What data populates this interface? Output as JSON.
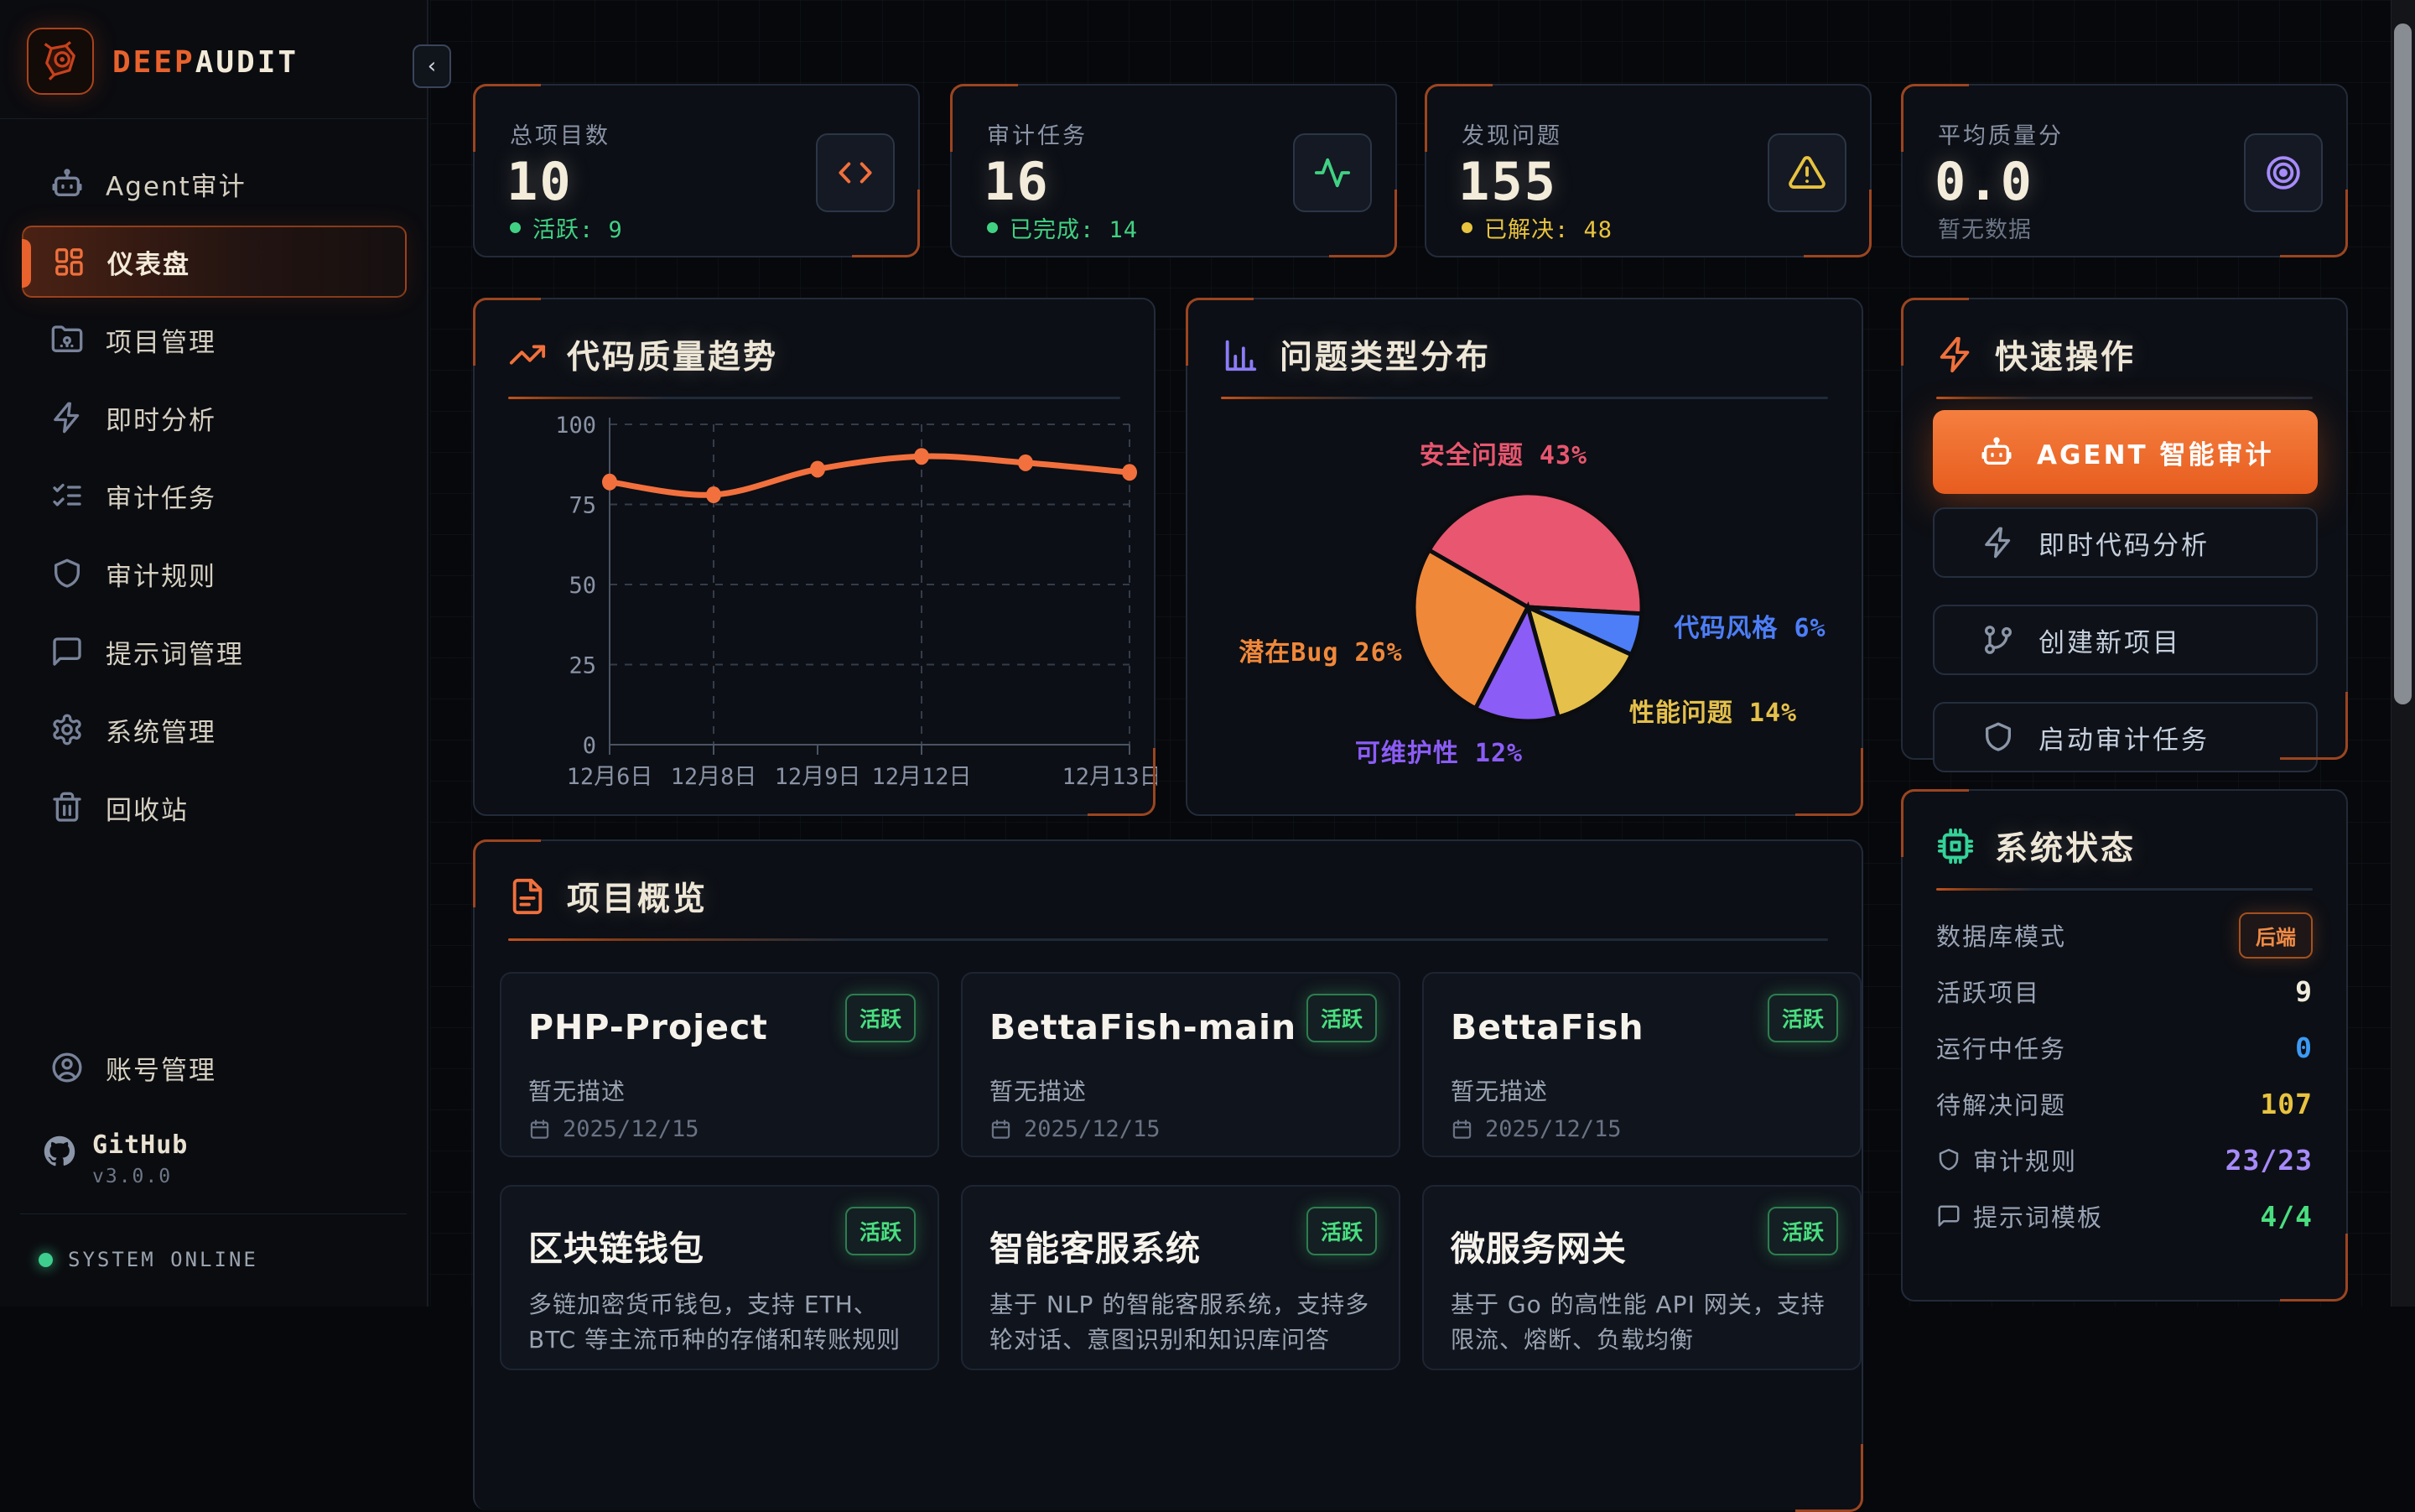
{
  "app": {
    "brand_deep": "DEEP",
    "brand_audit": "AUDIT",
    "version": "v3.0.0",
    "system_status_label": "SYSTEM ONLINE",
    "accent_color": "#e8622d"
  },
  "sidebar": {
    "items": [
      {
        "key": "agent-audit",
        "label": "Agent审计",
        "icon": "robot-icon",
        "active": false
      },
      {
        "key": "dashboard",
        "label": "仪表盘",
        "icon": "dashboard-grid-icon",
        "active": true
      },
      {
        "key": "project-management",
        "label": "项目管理",
        "icon": "folder-git-icon",
        "active": false
      },
      {
        "key": "instant-analysis",
        "label": "即时分析",
        "icon": "zap-icon",
        "active": false
      },
      {
        "key": "audit-tasks",
        "label": "审计任务",
        "icon": "checklist-icon",
        "active": false
      },
      {
        "key": "audit-rules",
        "label": "审计规则",
        "icon": "shield-icon",
        "active": false
      },
      {
        "key": "prompt-management",
        "label": "提示词管理",
        "icon": "chat-bubble-icon",
        "active": false
      },
      {
        "key": "system-management",
        "label": "系统管理",
        "icon": "gear-icon",
        "active": false
      },
      {
        "key": "recycle-bin",
        "label": "回收站",
        "icon": "trash-icon",
        "active": false
      }
    ],
    "account": {
      "key": "account-management",
      "label": "账号管理",
      "icon": "user-circle-icon"
    },
    "github": {
      "label": "GitHub",
      "version": "v3.0.0",
      "icon": "github-icon"
    }
  },
  "stats": [
    {
      "key": "total-projects",
      "label": "总项目数",
      "value": "10",
      "sub": "活跃: 9",
      "sub_color": "#41d183",
      "dot": true,
      "icon": "code-brackets-icon",
      "icon_color": "#f0703c"
    },
    {
      "key": "audit-tasks",
      "label": "审计任务",
      "value": "16",
      "sub": "已完成: 14",
      "sub_color": "#41d183",
      "dot": true,
      "icon": "activity-icon",
      "icon_color": "#41d183"
    },
    {
      "key": "issues-found",
      "label": "发现问题",
      "value": "155",
      "sub": "已解决: 48",
      "sub_color": "#e8c33f",
      "dot": true,
      "icon": "warning-triangle-icon",
      "icon_color": "#e8c33f"
    },
    {
      "key": "avg-quality",
      "label": "平均质量分",
      "value": "0.0",
      "sub": "暂无数据",
      "sub_color": "#6b7585",
      "dot": false,
      "icon": "target-icon",
      "icon_color": "#a78bfa"
    }
  ],
  "chart_data": [
    {
      "type": "line",
      "title": "代码质量趋势",
      "title_icon": "trending-up-icon",
      "title_icon_color": "#f0703c",
      "x": [
        "12月6日",
        "12月8日",
        "12月9日",
        "12月12日",
        "",
        "12月13日"
      ],
      "values": [
        82,
        78,
        86,
        90,
        88,
        85
      ],
      "ylim": [
        0,
        100
      ],
      "yticks": [
        0,
        25,
        50,
        75,
        100
      ],
      "line_color": "#f2703d",
      "grid": "dashed"
    },
    {
      "type": "pie",
      "title": "问题类型分布",
      "title_icon": "bar-chart-icon",
      "title_icon_color": "#8b7cf6",
      "start_angle": 150,
      "series": [
        {
          "name": "安全问题",
          "pct": 43,
          "color": "#e8566f"
        },
        {
          "name": "代码风格",
          "pct": 6,
          "color": "#4d7ef7"
        },
        {
          "name": "性能问题",
          "pct": 14,
          "color": "#e5c04b"
        },
        {
          "name": "可维护性",
          "pct": 12,
          "color": "#8b5cf6"
        },
        {
          "name": "潜在Bug",
          "pct": 26,
          "color": "#f0883a"
        }
      ]
    }
  ],
  "quick_actions": {
    "title": "快速操作",
    "icon": "zap-icon",
    "buttons": [
      {
        "key": "agent-smart-audit",
        "label": "AGENT 智能审计",
        "icon": "robot-icon",
        "primary": true
      },
      {
        "key": "instant-code-analysis",
        "label": "即时代码分析",
        "icon": "zap-icon",
        "primary": false
      },
      {
        "key": "create-new-project",
        "label": "创建新项目",
        "icon": "git-branch-icon",
        "primary": false
      },
      {
        "key": "start-audit-task",
        "label": "启动审计任务",
        "icon": "shield-icon",
        "primary": false
      }
    ]
  },
  "system_status": {
    "title": "系统状态",
    "icon": "cpu-icon",
    "rows": [
      {
        "key": "db-mode",
        "label": "数据库模式",
        "value": "后端",
        "badge": true,
        "color": "#f08b45",
        "icon": null
      },
      {
        "key": "active-projects",
        "label": "活跃项目",
        "value": "9",
        "badge": false,
        "color": "#f2ecdc",
        "icon": null
      },
      {
        "key": "running-tasks",
        "label": "运行中任务",
        "value": "0",
        "badge": false,
        "color": "#3b9af5",
        "icon": null
      },
      {
        "key": "open-issues",
        "label": "待解决问题",
        "value": "107",
        "badge": false,
        "color": "#e8c33f",
        "icon": null
      },
      {
        "key": "audit-rules",
        "label": "审计规则",
        "value": "23/23",
        "badge": false,
        "color": "#a78bfa",
        "icon": "shield-icon"
      },
      {
        "key": "prompt-templates",
        "label": "提示词模板",
        "value": "4/4",
        "badge": false,
        "color": "#4ade80",
        "icon": "chat-bubble-icon"
      }
    ]
  },
  "projects": {
    "title": "项目概览",
    "icon": "file-text-icon",
    "badge": "活跃",
    "cards": [
      {
        "name": "PHP-Project",
        "desc": "暂无描述",
        "date": "2025/12/15"
      },
      {
        "name": "BettaFish-main",
        "desc": "暂无描述",
        "date": "2025/12/15"
      },
      {
        "name": "BettaFish",
        "desc": "暂无描述",
        "date": "2025/12/15"
      },
      {
        "name": "区块链钱包",
        "desc": "多链加密货币钱包，支持 ETH、BTC 等主流币种的存储和转账规则",
        "date": ""
      },
      {
        "name": "智能客服系统",
        "desc": "基于 NLP 的智能客服系统，支持多轮对话、意图识别和知识库问答",
        "date": ""
      },
      {
        "name": "微服务网关",
        "desc": "基于 Go 的高性能 API 网关，支持限流、熔断、负载均衡",
        "date": ""
      }
    ]
  }
}
